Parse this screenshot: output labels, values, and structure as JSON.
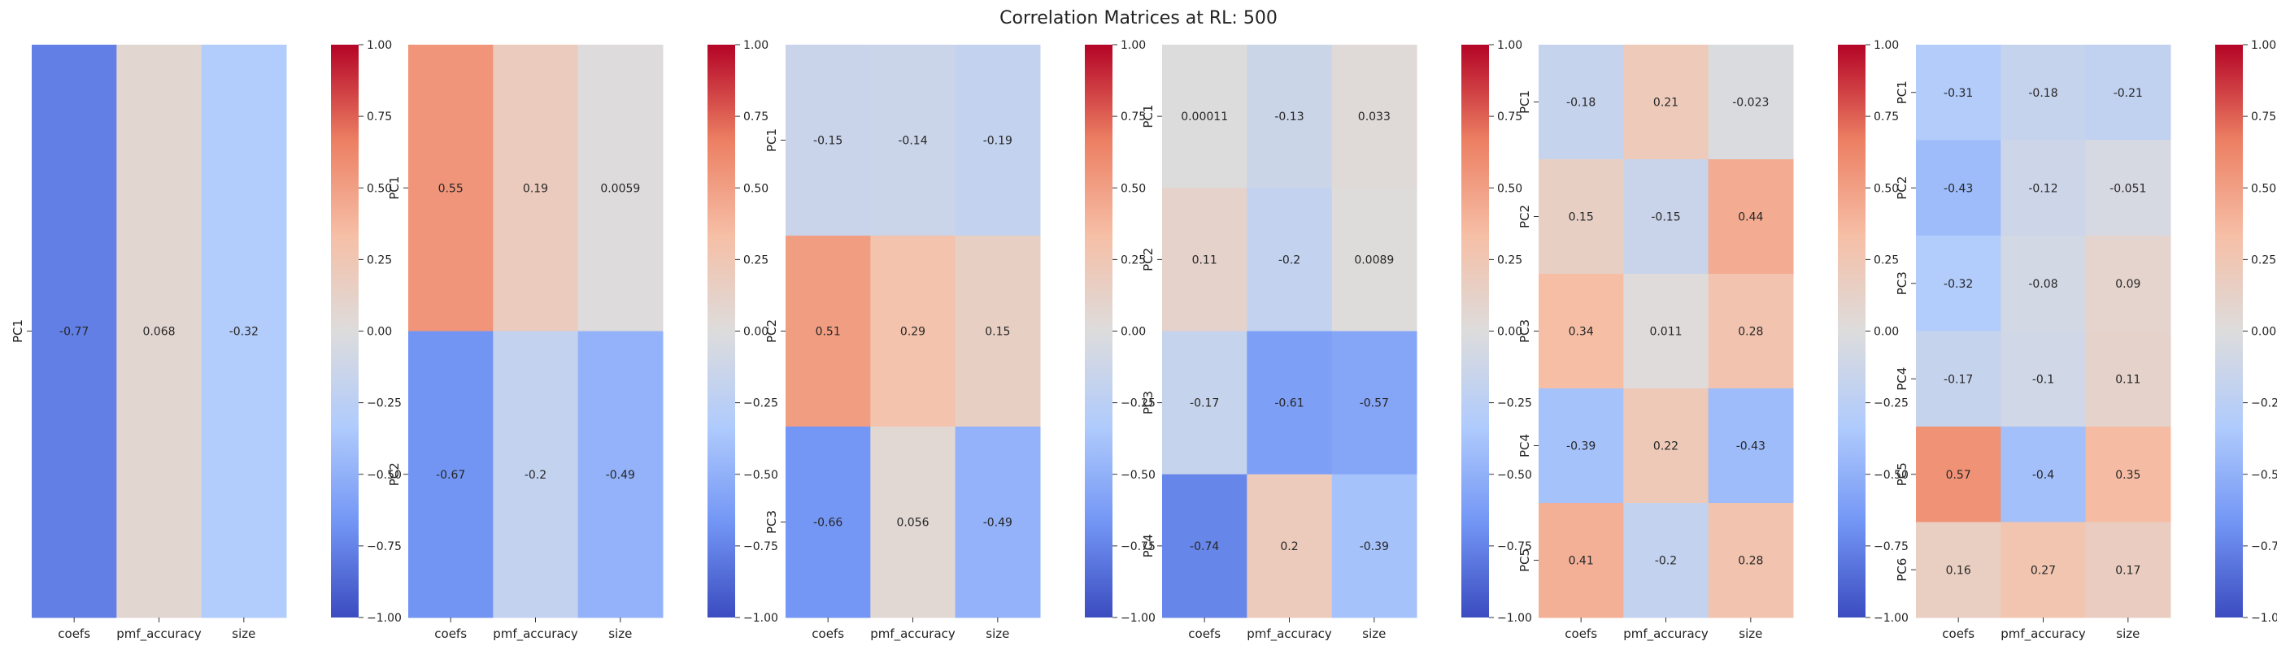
{
  "title": "Correlation Matrices at RL: 500",
  "colormap": {
    "name": "coolwarm",
    "stops": [
      "#3b4cc0",
      "#7396f5",
      "#b0cbfc",
      "#dddcdc",
      "#f6bfa6",
      "#ec7f63",
      "#b40426"
    ]
  },
  "colorbar_ticks": [
    "1.00",
    "0.75",
    "0.50",
    "0.25",
    "0.00",
    "−0.25",
    "−0.50",
    "−0.75",
    "−1.00"
  ],
  "chart_data": [
    {
      "type": "heatmap",
      "columns": [
        "coefs",
        "pmf_accuracy",
        "size"
      ],
      "rows": [
        "PC1"
      ],
      "values": [
        [
          -0.77,
          0.068,
          -0.32
        ]
      ],
      "labels": [
        [
          "-0.77",
          "0.068",
          "-0.32"
        ]
      ],
      "vlim": [
        -1,
        1
      ]
    },
    {
      "type": "heatmap",
      "columns": [
        "coefs",
        "pmf_accuracy",
        "size"
      ],
      "rows": [
        "PC1",
        "PC2"
      ],
      "values": [
        [
          0.55,
          0.19,
          0.0059
        ],
        [
          -0.67,
          -0.2,
          -0.49
        ]
      ],
      "labels": [
        [
          "0.55",
          "0.19",
          "0.0059"
        ],
        [
          "-0.67",
          "-0.2",
          "-0.49"
        ]
      ],
      "vlim": [
        -1,
        1
      ]
    },
    {
      "type": "heatmap",
      "columns": [
        "coefs",
        "pmf_accuracy",
        "size"
      ],
      "rows": [
        "PC1",
        "PC2",
        "PC3"
      ],
      "values": [
        [
          -0.15,
          -0.14,
          -0.19
        ],
        [
          0.51,
          0.29,
          0.15
        ],
        [
          -0.66,
          0.056,
          -0.49
        ]
      ],
      "labels": [
        [
          "-0.15",
          "-0.14",
          "-0.19"
        ],
        [
          "0.51",
          "0.29",
          "0.15"
        ],
        [
          "-0.66",
          "0.056",
          "-0.49"
        ]
      ],
      "vlim": [
        -1,
        1
      ]
    },
    {
      "type": "heatmap",
      "columns": [
        "coefs",
        "pmf_accuracy",
        "size"
      ],
      "rows": [
        "PC1",
        "PC2",
        "PC3",
        "PC4"
      ],
      "values": [
        [
          0.00011,
          -0.13,
          0.033
        ],
        [
          0.11,
          -0.2,
          0.0089
        ],
        [
          -0.17,
          -0.61,
          -0.57
        ],
        [
          -0.74,
          0.2,
          -0.39
        ]
      ],
      "labels": [
        [
          "0.00011",
          "-0.13",
          "0.033"
        ],
        [
          "0.11",
          "-0.2",
          "0.0089"
        ],
        [
          "-0.17",
          "-0.61",
          "-0.57"
        ],
        [
          "-0.74",
          "0.2",
          "-0.39"
        ]
      ],
      "vlim": [
        -1,
        1
      ]
    },
    {
      "type": "heatmap",
      "columns": [
        "coefs",
        "pmf_accuracy",
        "size"
      ],
      "rows": [
        "PC1",
        "PC2",
        "PC3",
        "PC4",
        "PC5"
      ],
      "values": [
        [
          -0.18,
          0.21,
          -0.023
        ],
        [
          0.15,
          -0.15,
          0.44
        ],
        [
          0.34,
          0.011,
          0.28
        ],
        [
          -0.39,
          0.22,
          -0.43
        ],
        [
          0.41,
          -0.2,
          0.28
        ]
      ],
      "labels": [
        [
          "-0.18",
          "0.21",
          "-0.023"
        ],
        [
          "0.15",
          "-0.15",
          "0.44"
        ],
        [
          "0.34",
          "0.011",
          "0.28"
        ],
        [
          "-0.39",
          "0.22",
          "-0.43"
        ],
        [
          "0.41",
          "-0.2",
          "0.28"
        ]
      ],
      "vlim": [
        -1,
        1
      ]
    },
    {
      "type": "heatmap",
      "columns": [
        "coefs",
        "pmf_accuracy",
        "size"
      ],
      "rows": [
        "PC1",
        "PC2",
        "PC3",
        "PC4",
        "PC5",
        "PC6"
      ],
      "values": [
        [
          -0.31,
          -0.18,
          -0.21
        ],
        [
          -0.43,
          -0.12,
          -0.051
        ],
        [
          -0.32,
          -0.08,
          0.09
        ],
        [
          -0.17,
          -0.1,
          0.11
        ],
        [
          0.57,
          -0.4,
          0.35
        ],
        [
          0.16,
          0.27,
          0.17
        ]
      ],
      "labels": [
        [
          "-0.31",
          "-0.18",
          "-0.21"
        ],
        [
          "-0.43",
          "-0.12",
          "-0.051"
        ],
        [
          "-0.32",
          "-0.08",
          "0.09"
        ],
        [
          "-0.17",
          "-0.1",
          "0.11"
        ],
        [
          "0.57",
          "-0.4",
          "0.35"
        ],
        [
          "0.16",
          "0.27",
          "0.17"
        ]
      ],
      "vlim": [
        -1,
        1
      ]
    }
  ]
}
